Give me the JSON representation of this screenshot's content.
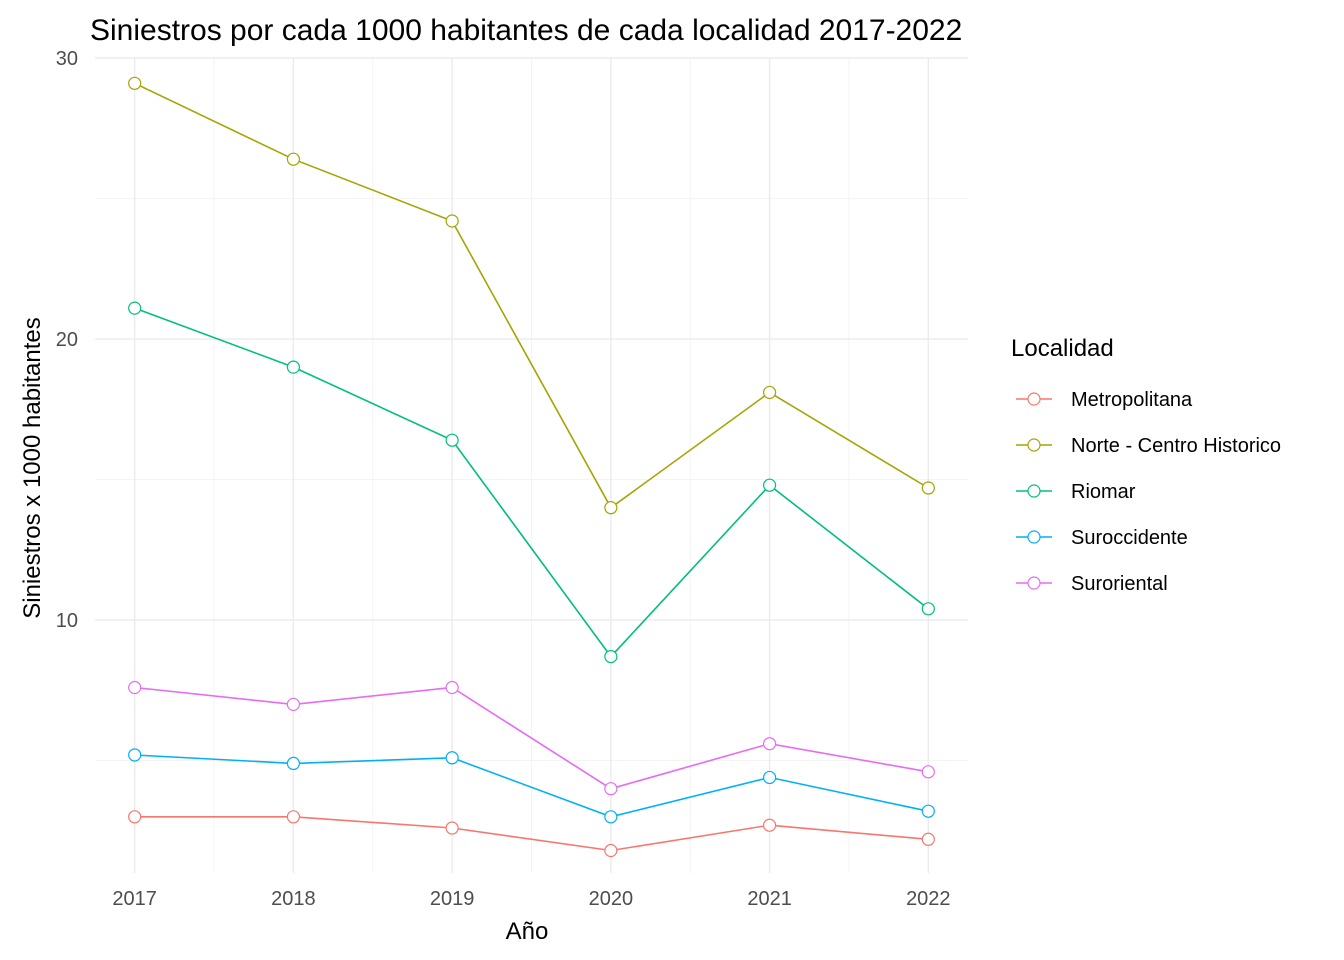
{
  "chart_data": {
    "type": "line",
    "title": "Siniestros por cada 1000 habitantes de cada localidad 2017-2022",
    "xlabel": "Año",
    "ylabel": "Siniestros x 1000 habitantes",
    "x": [
      2017,
      2018,
      2019,
      2020,
      2021,
      2022
    ],
    "x_ticks": [
      "2017",
      "2018",
      "2019",
      "2020",
      "2021",
      "2022"
    ],
    "y_ticks": [
      "10",
      "20",
      "30"
    ],
    "xlim": [
      2016.75,
      2022.25
    ],
    "ylim": [
      1.0,
      30.0
    ],
    "grid": true,
    "legend": {
      "title": "Localidad",
      "position": "right"
    },
    "series": [
      {
        "name": "Metropolitana",
        "color": "#F8766D",
        "values": [
          3.0,
          3.0,
          2.6,
          1.8,
          2.7,
          2.2
        ]
      },
      {
        "name": "Norte - Centro Historico",
        "color": "#A3A500",
        "values": [
          29.1,
          26.4,
          24.2,
          14.0,
          18.1,
          14.7
        ]
      },
      {
        "name": "Riomar",
        "color": "#00BF7D",
        "values": [
          21.1,
          19.0,
          16.4,
          8.7,
          14.8,
          10.4
        ]
      },
      {
        "name": "Suroccidente",
        "color": "#00B0F6",
        "values": [
          5.2,
          4.9,
          5.1,
          3.0,
          4.4,
          3.2
        ]
      },
      {
        "name": "Suroriental",
        "color": "#E76BF3",
        "values": [
          7.6,
          7.0,
          7.6,
          4.0,
          5.6,
          4.6
        ]
      }
    ]
  }
}
